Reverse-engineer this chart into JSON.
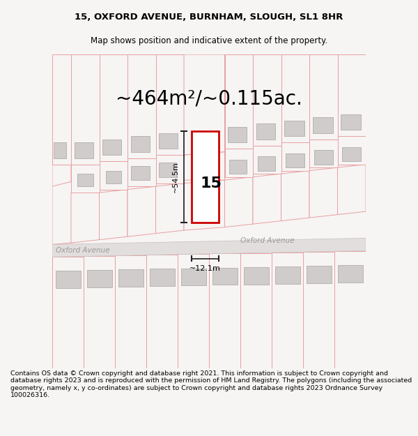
{
  "title_line1": "15, OXFORD AVENUE, BURNHAM, SLOUGH, SL1 8HR",
  "title_line2": "Map shows position and indicative extent of the property.",
  "area_text": "~464m²/~0.115ac.",
  "property_number": "15",
  "dim_height": "~54.5m",
  "dim_width": "~12.1m",
  "road_name": "Oxford Avenue",
  "road_name2": "Oxford Avenue",
  "footer_text": "Contains OS data © Crown copyright and database right 2021. This information is subject to Crown copyright and database rights 2023 and is reproduced with the permission of HM Land Registry. The polygons (including the associated geometry, namely x, y co-ordinates) are subject to Crown copyright and database rights 2023 Ordnance Survey 100026316.",
  "bg_color": "#f7f4f4",
  "map_bg": "#f7f4f4",
  "road_color": "#e2dede",
  "road_stroke": "#c8c0c0",
  "plot_outline_color": "#cc0000",
  "building_fill": "#d0cccc",
  "building_stroke": "#b8b4b4",
  "parcel_stroke": "#e8a0a0",
  "parcel_fill": "#f7f4f4",
  "dim_line_color": "#222222",
  "title_fontsize": 9.5,
  "subtitle_fontsize": 8.5,
  "area_fontsize": 20,
  "number_fontsize": 16,
  "dim_fontsize": 8,
  "road_fontsize": 7.5,
  "footer_fontsize": 6.8
}
